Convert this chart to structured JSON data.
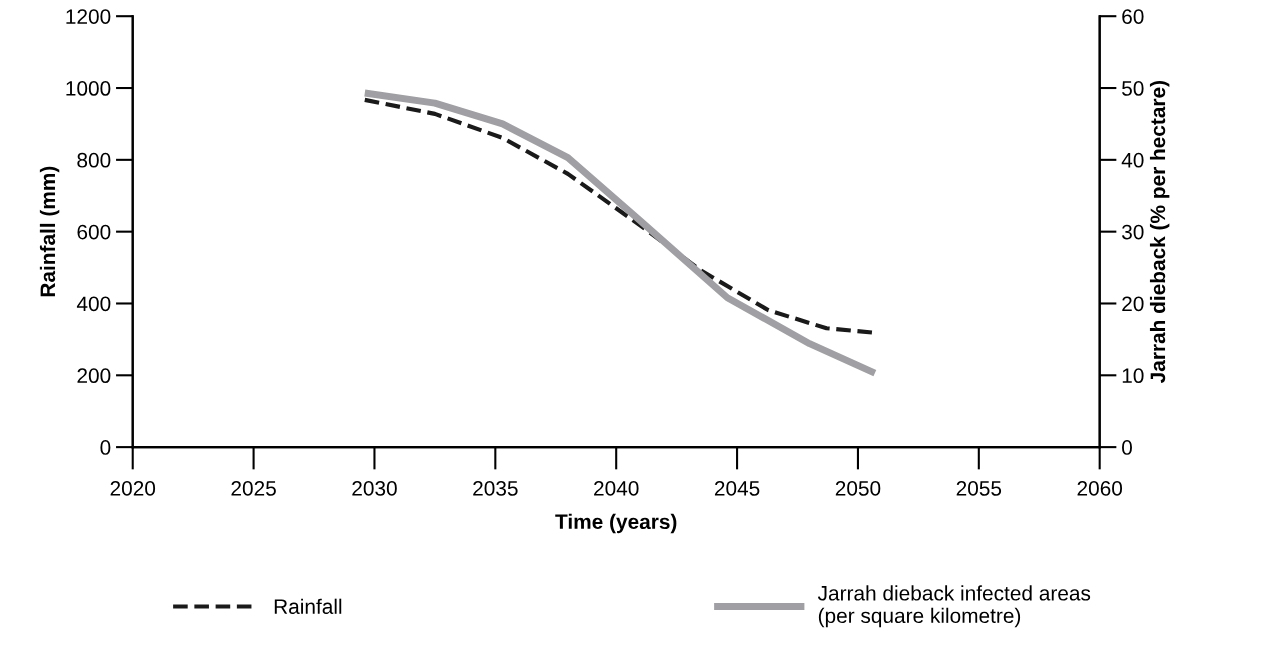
{
  "chart_data": {
    "type": "line",
    "xlabel": "Time (years)",
    "ylabel": "Rainfall (mm)",
    "y2label": "Jarrah dieback (% per hectare)",
    "xlim": [
      2020,
      2060
    ],
    "xticks": [
      2020,
      2025,
      2030,
      2035,
      2040,
      2045,
      2050,
      2055,
      2060
    ],
    "ylim": [
      0,
      1200
    ],
    "yticks": [
      0,
      200,
      400,
      600,
      800,
      1000,
      1200
    ],
    "y2lim": [
      0,
      60
    ],
    "y2ticks": [
      0,
      10,
      20,
      30,
      40,
      50,
      60
    ],
    "grid": false,
    "legend": "bottom",
    "marker": "none",
    "series": [
      {
        "name": "Rainfall",
        "color": "#1a1a1a",
        "line_style": "dashed",
        "x": [
          2029.6,
          2032.5,
          2035.3,
          2038.0,
          2040.9,
          2043.5,
          2046.3,
          2048.7,
          2050.6
        ],
        "values": [
          967,
          928,
          861,
          761,
          622,
          492,
          381,
          331,
          319
        ]
      },
      {
        "name": "Jarrah dieback infected areas\n(per square kilometre)",
        "color": "#a0a0a4",
        "line_style": "solid",
        "axis": "y2",
        "x": [
          2029.6,
          2032.5,
          2035.3,
          2038.0,
          2041.0,
          2044.6,
          2048.0,
          2050.7
        ],
        "values": [
          49.3,
          47.9,
          45,
          40.3,
          31.5,
          20.8,
          14.4,
          10.3
        ]
      }
    ]
  }
}
